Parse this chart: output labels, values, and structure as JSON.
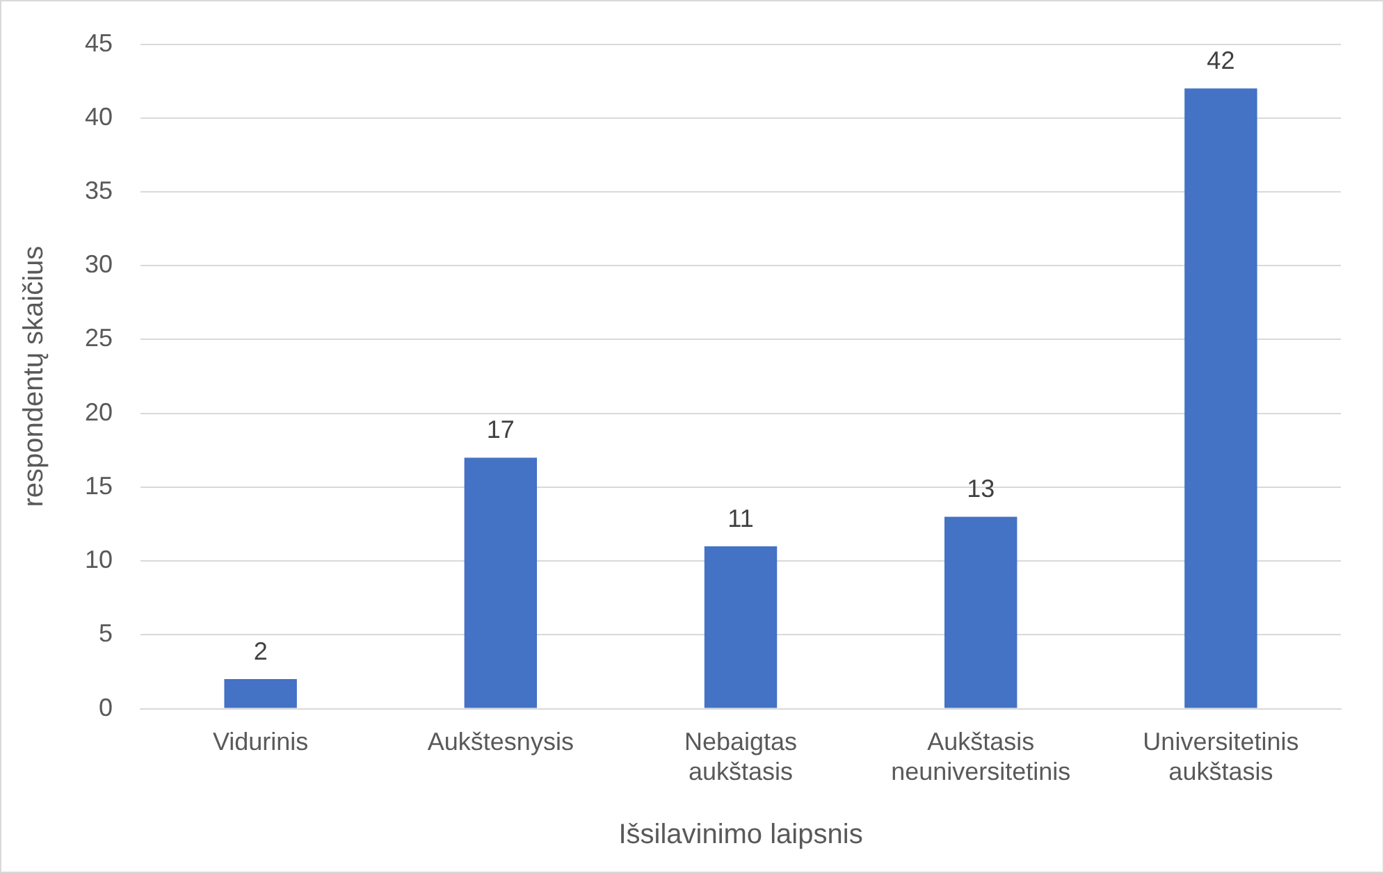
{
  "chart_data": {
    "type": "bar",
    "xlabel": "Išsilavinimo laipsnis",
    "ylabel": "respondentų skaičius",
    "categories": [
      "Vidurinis",
      "Aukštesnysis",
      "Nebaigtas aukštasis",
      "Aukštasis neuniversitetinis",
      "Universitetinis aukštasis"
    ],
    "values": [
      2,
      17,
      11,
      13,
      42
    ],
    "color": "#4472c4",
    "ylim": [
      0,
      45
    ],
    "yticks": [
      0,
      5,
      10,
      15,
      20,
      25,
      30,
      35,
      40,
      45
    ],
    "grid": "y",
    "data_labels": true,
    "legend": false
  }
}
